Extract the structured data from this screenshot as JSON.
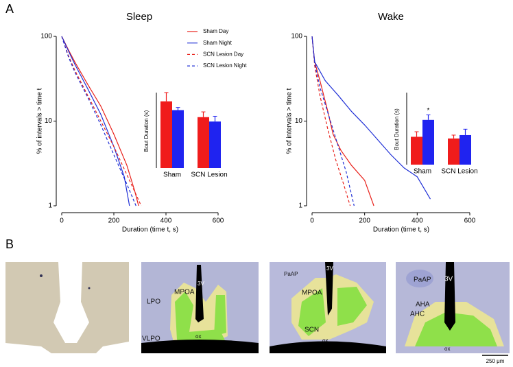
{
  "chart_data": [
    {
      "type": "line",
      "title": "Sleep",
      "xlabel": "Duration (time t, s)",
      "ylabel": "% of intervals > time t",
      "xlim": [
        0,
        600
      ],
      "ylim": [
        1,
        100
      ],
      "log_y": true,
      "xticks": [
        0,
        200,
        400,
        600
      ],
      "yticks": [
        1,
        10,
        100
      ],
      "legend": "upper right",
      "series": [
        {
          "name": "Sham Day",
          "color": "#e8201a",
          "dashed": false,
          "x": [
            0,
            25,
            50,
            100,
            150,
            200,
            250,
            280,
            295
          ],
          "values": [
            100,
            70,
            50,
            27,
            15,
            7,
            3,
            1.5,
            1
          ]
        },
        {
          "name": "Sham Night",
          "color": "#1f2fd6",
          "dashed": false,
          "x": [
            0,
            25,
            50,
            100,
            150,
            200,
            240,
            260
          ],
          "values": [
            100,
            68,
            47,
            24,
            12,
            5,
            2.2,
            1
          ]
        },
        {
          "name": "SCN Lesion Day",
          "color": "#e8201a",
          "dashed": true,
          "x": [
            0,
            25,
            50,
            100,
            150,
            200,
            260,
            305
          ],
          "values": [
            100,
            60,
            40,
            20,
            10,
            5,
            2,
            1
          ]
        },
        {
          "name": "SCN Lesion Night",
          "color": "#1f2fd6",
          "dashed": true,
          "x": [
            0,
            25,
            50,
            100,
            150,
            200,
            250,
            285
          ],
          "values": [
            100,
            58,
            38,
            19,
            9,
            4,
            1.8,
            1
          ]
        }
      ]
    },
    {
      "type": "bar",
      "ylabel": "Bout Duration (s)",
      "ylim": [
        0,
        100
      ],
      "categories": [
        "Sham",
        "SCN Lesion"
      ],
      "series": [
        {
          "color": "#f01c1c",
          "values": [
            76,
            58
          ],
          "errors": [
            10,
            6
          ]
        },
        {
          "color": "#1f23f0",
          "values": [
            66,
            53
          ],
          "errors": [
            3,
            6
          ]
        }
      ]
    },
    {
      "type": "line",
      "title": "Wake",
      "xlabel": "Duration (time t, s)",
      "ylabel": "% of intervals > time t",
      "xlim": [
        0,
        600
      ],
      "ylim": [
        1,
        100
      ],
      "log_y": true,
      "xticks": [
        0,
        200,
        400,
        600
      ],
      "yticks": [
        1,
        10,
        100
      ],
      "series": [
        {
          "color": "#e8201a",
          "dashed": false,
          "x": [
            0,
            10,
            30,
            60,
            80,
            110,
            150,
            200,
            235
          ],
          "values": [
            100,
            50,
            30,
            13,
            7,
            4.5,
            3,
            2,
            1
          ]
        },
        {
          "color": "#1f2fd6",
          "dashed": false,
          "x": [
            0,
            10,
            50,
            100,
            150,
            200,
            250,
            300,
            350,
            400,
            450
          ],
          "values": [
            100,
            50,
            30,
            20,
            13,
            9,
            6,
            4,
            2.8,
            2.2,
            1.2
          ]
        },
        {
          "color": "#e8201a",
          "dashed": true,
          "x": [
            0,
            10,
            30,
            60,
            90,
            120,
            145
          ],
          "values": [
            100,
            45,
            20,
            8,
            3.5,
            1.8,
            1
          ]
        },
        {
          "color": "#1f2fd6",
          "dashed": true,
          "x": [
            0,
            10,
            30,
            70,
            100,
            130,
            160
          ],
          "values": [
            100,
            48,
            25,
            10,
            5,
            2.5,
            1
          ]
        }
      ]
    },
    {
      "type": "bar",
      "ylabel": "Bout Duration (s)",
      "ylim": [
        0,
        100
      ],
      "categories": [
        "Sham",
        "SCN Lesion"
      ],
      "significance": "*",
      "series": [
        {
          "color": "#f01c1c",
          "values": [
            33,
            31
          ],
          "errors": [
            6,
            4
          ]
        },
        {
          "color": "#1f23f0",
          "values": [
            53,
            35
          ],
          "errors": [
            6,
            7
          ]
        }
      ]
    }
  ],
  "panel_labels": [
    "A",
    "B"
  ],
  "histology_sections": [
    [
      "LPO",
      "MPOA",
      "3V",
      "VLPO",
      "ox"
    ],
    [
      "PaAP",
      "3V",
      "MPOA",
      "SCN",
      "ox"
    ],
    [
      "PaAP",
      "3V",
      "AHA",
      "AHC",
      "ox"
    ]
  ],
  "scale_bar": "250 μm"
}
